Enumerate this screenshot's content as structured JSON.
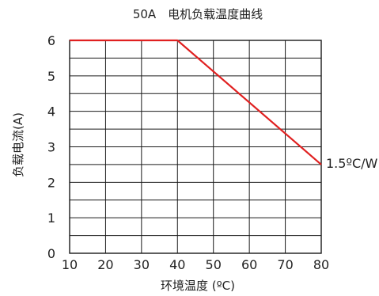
{
  "chart_data": {
    "type": "line",
    "title": "50A　电机负载温度曲线",
    "xlabel": "环境温度 (ºC)",
    "ylabel": "负载电流(A)",
    "x_ticks": [
      "10",
      "20",
      "30",
      "40",
      "50",
      "60",
      "70",
      "80"
    ],
    "y_ticks": [
      "0",
      "1",
      "2",
      "3",
      "4",
      "5",
      "6"
    ],
    "xlim": [
      10,
      80
    ],
    "ylim": [
      0,
      6
    ],
    "grid": true,
    "series": [
      {
        "points": [
          {
            "x": 10,
            "y": 6
          },
          {
            "x": 40,
            "y": 6
          },
          {
            "x": 80,
            "y": 2.5
          }
        ],
        "color": "#e02020"
      }
    ],
    "annotation": "1.5ºC/W"
  }
}
